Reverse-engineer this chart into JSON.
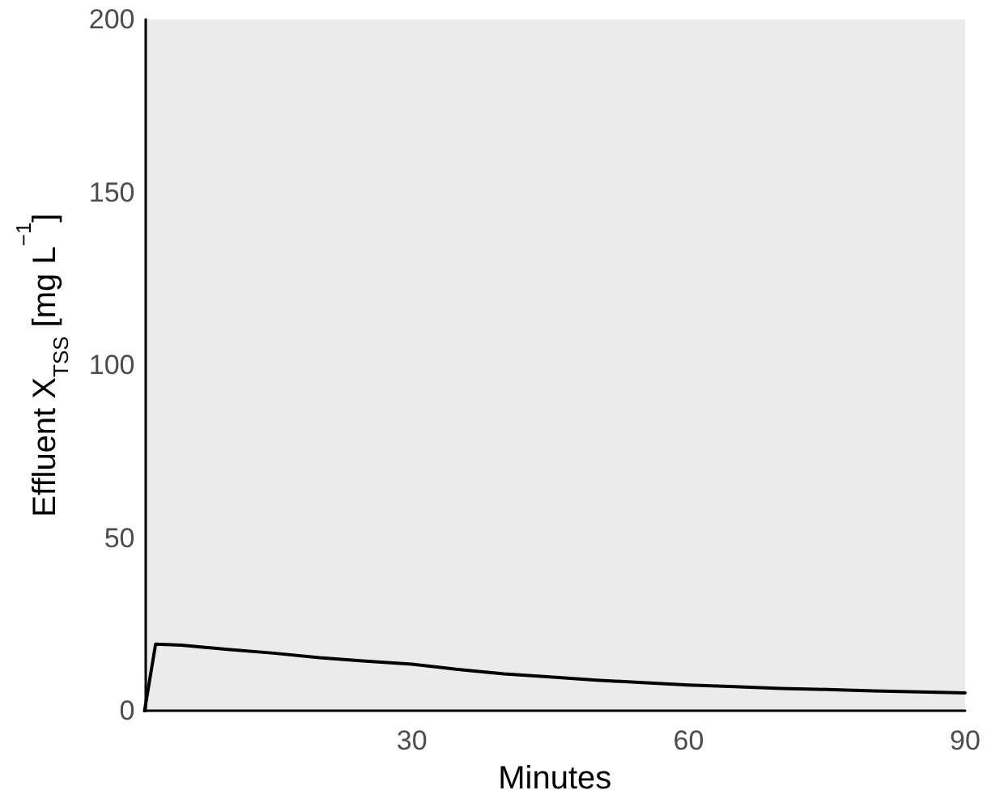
{
  "chart_data": {
    "type": "line",
    "xlabel": "Minutes",
    "ylabel": "Effluent X$_{TSS}$ [mg L$^{−1}$]",
    "x": [
      1,
      2.2,
      5,
      10,
      15,
      20,
      25,
      30,
      35,
      40,
      45,
      50,
      55,
      60,
      65,
      70,
      75,
      80,
      85,
      90
    ],
    "series": [
      {
        "color": "#000000",
        "values": [
          0,
          19.3,
          19,
          17.8,
          16.7,
          15.4,
          14.4,
          13.5,
          12,
          10.7,
          9.8,
          8.9,
          8.2,
          7.5,
          7,
          6.5,
          6.2,
          5.8,
          5.5,
          5.2
        ]
      }
    ],
    "xlim": [
      1,
      90
    ],
    "xticks": [
      30,
      60,
      90
    ],
    "ylim": [
      0,
      200
    ],
    "yticks": [
      0,
      50,
      100,
      150,
      200
    ],
    "marker": "none",
    "line_style": "solid"
  }
}
